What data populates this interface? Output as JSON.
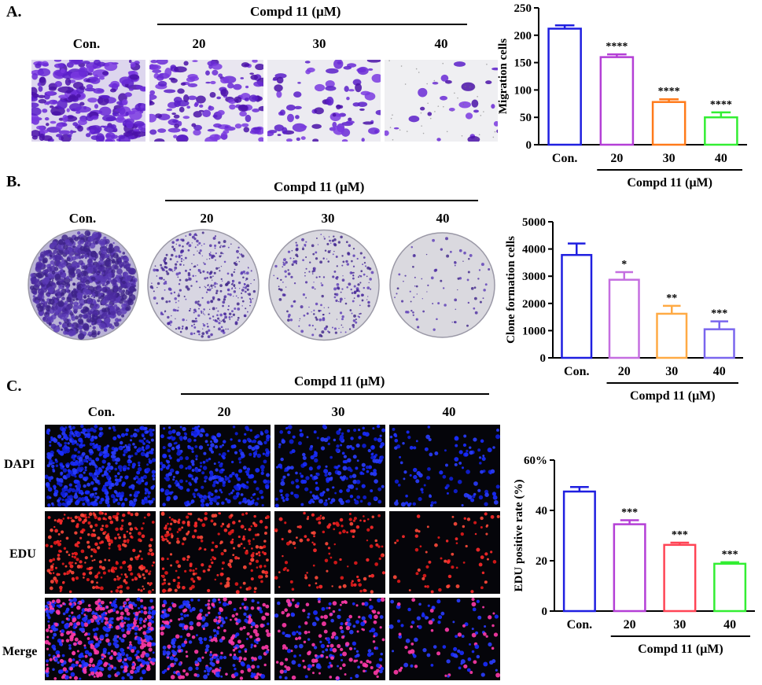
{
  "panels": {
    "A": {
      "letter": "A.",
      "group_label": "Compd 11 (μM)",
      "columns": [
        "Con.",
        "20",
        "30",
        "40"
      ]
    },
    "B": {
      "letter": "B.",
      "group_label": "Compd 11 (μM)",
      "columns": [
        "Con.",
        "20",
        "30",
        "40"
      ]
    },
    "C": {
      "letter": "C.",
      "group_label": "Compd 11 (μM)",
      "columns": [
        "Con.",
        "20",
        "30",
        "40"
      ],
      "rows": [
        "DAPI",
        "EDU",
        "Merge"
      ]
    }
  },
  "chart_data": [
    {
      "type": "bar",
      "categories": [
        "Con.",
        "20",
        "30",
        "40"
      ],
      "values": [
        212,
        160,
        78,
        50
      ],
      "errors": [
        6,
        5,
        5,
        9
      ],
      "significance": [
        "",
        "****",
        "****",
        "****"
      ],
      "colors": [
        "#1f1fe0",
        "#b43fd6",
        "#ff7a1a",
        "#33ee33"
      ],
      "xlabel_group": "Compd 11 (μM)",
      "ylabel": "Migration cells",
      "ylim": [
        0,
        250
      ],
      "yticks": [
        0,
        50,
        100,
        150,
        200,
        250
      ]
    },
    {
      "type": "bar",
      "categories": [
        "Con.",
        "20",
        "30",
        "40"
      ],
      "values": [
        3780,
        2870,
        1620,
        1050
      ],
      "errors": [
        420,
        280,
        290,
        290
      ],
      "significance": [
        "",
        "*",
        "**",
        "***"
      ],
      "colors": [
        "#1f1fe0",
        "#c56ee0",
        "#ffaa44",
        "#7a66ee"
      ],
      "xlabel_group": "Compd 11 (μM)",
      "ylabel": "Clone formation cells",
      "ylim": [
        0,
        5000
      ],
      "yticks": [
        0,
        1000,
        2000,
        3000,
        4000,
        5000
      ]
    },
    {
      "type": "bar",
      "categories": [
        "Con.",
        "20",
        "30",
        "40"
      ],
      "values": [
        47.5,
        34.5,
        26.3,
        18.8
      ],
      "errors": [
        1.8,
        1.6,
        0.9,
        0.6
      ],
      "significance": [
        "",
        "***",
        "***",
        "***"
      ],
      "colors": [
        "#1f1fe0",
        "#b43fd6",
        "#ff4455",
        "#33ee33"
      ],
      "xlabel_group": "Compd 11 (μM)",
      "ylabel": "EDU positive rate (%)",
      "ylim": [
        0,
        60
      ],
      "yticks": [
        "0",
        "20",
        "40",
        "60%"
      ]
    }
  ]
}
